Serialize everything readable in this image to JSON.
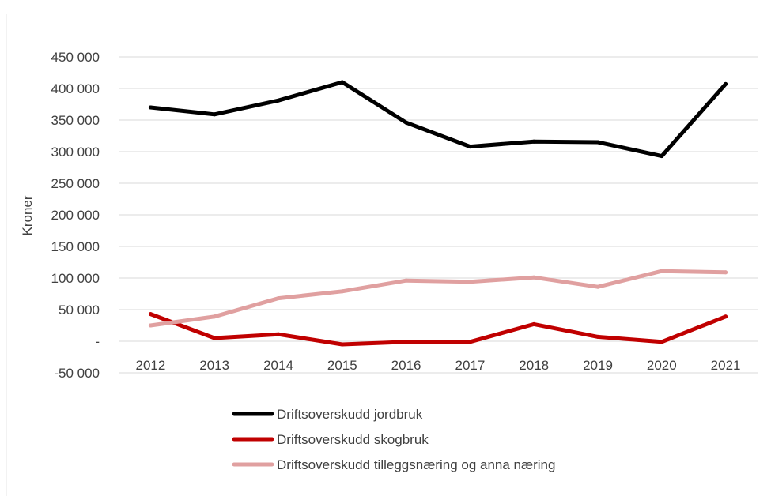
{
  "chart_data": {
    "type": "line",
    "ylabel": "Kroner",
    "xlabel": "",
    "ylim": [
      -50000,
      450000
    ],
    "y_ticks": [
      {
        "value": 450000,
        "label": "450 000"
      },
      {
        "value": 400000,
        "label": "400 000"
      },
      {
        "value": 350000,
        "label": "350 000"
      },
      {
        "value": 300000,
        "label": "300 000"
      },
      {
        "value": 250000,
        "label": "250 000"
      },
      {
        "value": 200000,
        "label": "200 000"
      },
      {
        "value": 150000,
        "label": "150 000"
      },
      {
        "value": 100000,
        "label": "100 000"
      },
      {
        "value": 50000,
        "label": "50 000"
      },
      {
        "value": 0,
        "label": "-"
      },
      {
        "value": -50000,
        "label": "-50 000"
      }
    ],
    "categories": [
      "2012",
      "2013",
      "2014",
      "2015",
      "2016",
      "2017",
      "2018",
      "2019",
      "2020",
      "2021"
    ],
    "grid": true,
    "legend_position": "bottom",
    "series": [
      {
        "name": "Driftsoverskudd jordbruk",
        "color": "#000000",
        "values": [
          370000,
          359000,
          381000,
          410000,
          346000,
          308000,
          316000,
          315000,
          293000,
          407000
        ]
      },
      {
        "name": "Driftsoverskudd skogbruk",
        "color": "#C00000",
        "values": [
          43000,
          5000,
          11000,
          -5000,
          -1000,
          -1000,
          27000,
          7000,
          -1000,
          39000
        ]
      },
      {
        "name": "Driftsoverskudd tilleggsnæring og anna næring",
        "color": "#E0A0A0",
        "values": [
          25000,
          39000,
          68000,
          79000,
          96000,
          94000,
          101000,
          86000,
          111000,
          109000
        ]
      }
    ]
  }
}
